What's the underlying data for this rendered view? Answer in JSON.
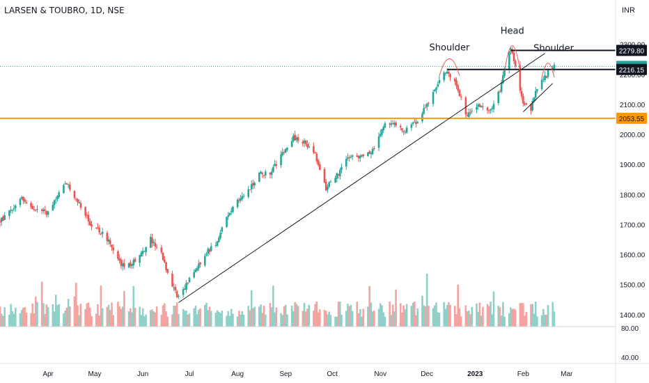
{
  "symbol_title": "LARSEN & TOUBRO, 1D, NSE",
  "currency": "INR",
  "colors": {
    "up": "#26a69a",
    "down": "#ef5350",
    "vol_up": "#8fd0c8",
    "vol_down": "#f5a3a1",
    "support": "#ff9800",
    "trend": "#131722",
    "arc": "#ef5350"
  },
  "chart_data": {
    "type": "candlestick",
    "title": "LARSEN & TOUBRO, 1D, NSE",
    "y_unit": "INR",
    "ylim": [
      1360,
      2320
    ],
    "yticks": [
      1400,
      1500,
      1600,
      1700,
      1800,
      1900,
      2000,
      2100,
      2200,
      2300
    ],
    "volume_ticks": [
      "80.00",
      "40.00"
    ],
    "xticks": [
      "Apr",
      "May",
      "Jun",
      "Jul",
      "Aug",
      "Sep",
      "Oct",
      "Nov",
      "Dec",
      "2023",
      "Feb",
      "Mar"
    ],
    "bold_xtick": "2023",
    "price_levels": [
      {
        "label": "2279.80",
        "value": 2279.8,
        "style": "black"
      },
      {
        "label": "2226.35",
        "value": 2226.35,
        "style": "last"
      },
      {
        "label": "2216.15",
        "value": 2216.15,
        "style": "black"
      },
      {
        "label": "2053.55",
        "value": 2053.55,
        "style": "support"
      }
    ],
    "annotations": [
      "Shoulder",
      "Head",
      "Shoulder"
    ],
    "price_path": [
      [
        "2022-03-01",
        1710
      ],
      [
        "2022-03-08",
        1745
      ],
      [
        "2022-03-15",
        1790
      ],
      [
        "2022-03-22",
        1755
      ],
      [
        "2022-03-31",
        1740
      ],
      [
        "2022-04-08",
        1800
      ],
      [
        "2022-04-13",
        1840
      ],
      [
        "2022-04-20",
        1780
      ],
      [
        "2022-04-27",
        1710
      ],
      [
        "2022-05-04",
        1680
      ],
      [
        "2022-05-11",
        1640
      ],
      [
        "2022-05-18",
        1560
      ],
      [
        "2022-05-25",
        1570
      ],
      [
        "2022-06-01",
        1610
      ],
      [
        "2022-06-06",
        1650
      ],
      [
        "2022-06-13",
        1600
      ],
      [
        "2022-06-20",
        1500
      ],
      [
        "2022-06-24",
        1455
      ],
      [
        "2022-07-04",
        1540
      ],
      [
        "2022-07-11",
        1600
      ],
      [
        "2022-07-18",
        1640
      ],
      [
        "2022-07-25",
        1720
      ],
      [
        "2022-08-01",
        1780
      ],
      [
        "2022-08-08",
        1810
      ],
      [
        "2022-08-15",
        1870
      ],
      [
        "2022-08-22",
        1870
      ],
      [
        "2022-08-29",
        1930
      ],
      [
        "2022-09-06",
        1990
      ],
      [
        "2022-09-13",
        1975
      ],
      [
        "2022-09-20",
        1930
      ],
      [
        "2022-09-27",
        1820
      ],
      [
        "2022-10-05",
        1870
      ],
      [
        "2022-10-12",
        1930
      ],
      [
        "2022-10-19",
        1920
      ],
      [
        "2022-10-27",
        1950
      ],
      [
        "2022-11-03",
        2030
      ],
      [
        "2022-11-10",
        2035
      ],
      [
        "2022-11-17",
        2015
      ],
      [
        "2022-11-24",
        2040
      ],
      [
        "2022-12-01",
        2100
      ],
      [
        "2022-12-08",
        2165
      ],
      [
        "2022-12-14",
        2215
      ],
      [
        "2022-12-21",
        2150
      ],
      [
        "2022-12-27",
        2060
      ],
      [
        "2023-01-03",
        2095
      ],
      [
        "2023-01-10",
        2075
      ],
      [
        "2023-01-17",
        2150
      ],
      [
        "2023-01-20",
        2220
      ],
      [
        "2023-01-24",
        2290
      ],
      [
        "2023-01-27",
        2230
      ],
      [
        "2023-02-01",
        2100
      ],
      [
        "2023-02-06",
        2085
      ],
      [
        "2023-02-10",
        2160
      ],
      [
        "2023-02-14",
        2180
      ],
      [
        "2023-02-17",
        2205
      ],
      [
        "2023-02-21",
        2226.35
      ]
    ],
    "trendline": [
      [
        "2022-06-24",
        1440
      ],
      [
        "2023-02-15",
        2270
      ]
    ],
    "wedge_lower": [
      [
        "2023-02-01",
        2075
      ],
      [
        "2023-02-20",
        2170
      ]
    ]
  }
}
